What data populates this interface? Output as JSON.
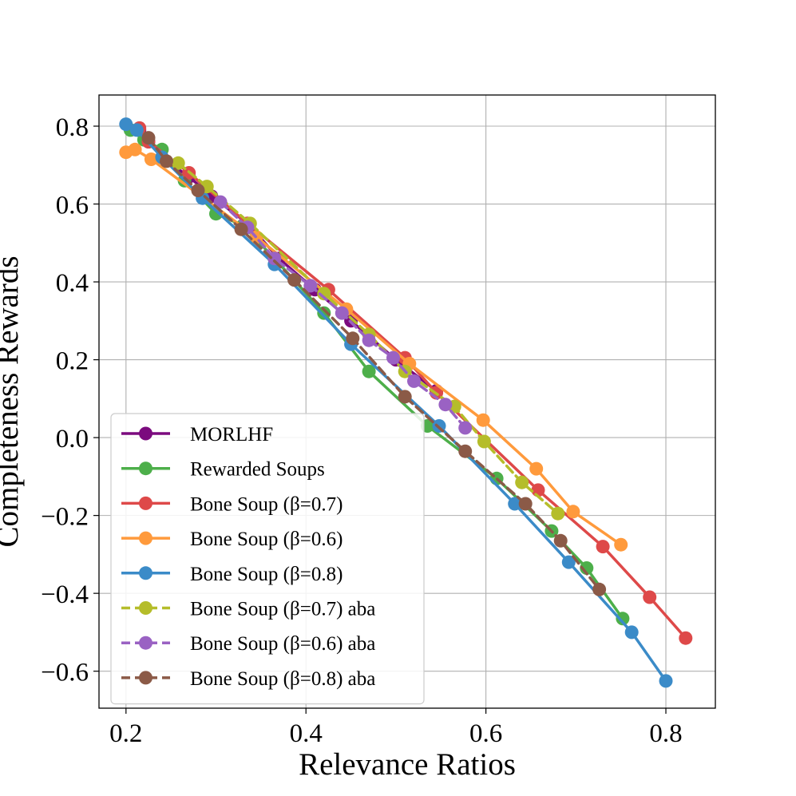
{
  "chart_data": {
    "type": "line",
    "title": "",
    "xlabel": "Relevance Ratios",
    "ylabel": "Completeness Rewards",
    "xlim": [
      0.17,
      0.855
    ],
    "ylim": [
      -0.695,
      0.88
    ],
    "xticks": [
      0.2,
      0.4,
      0.6,
      0.8
    ],
    "xtick_labels": [
      "0.2",
      "0.4",
      "0.6",
      "0.8"
    ],
    "yticks": [
      0.8,
      0.6,
      0.4,
      0.2,
      0.0,
      -0.2,
      -0.4,
      -0.6
    ],
    "ytick_labels": [
      "0.8",
      "0.6",
      "0.4",
      "0.2",
      "0.0",
      "−0.2",
      "−0.4",
      "−0.6"
    ],
    "grid": true,
    "legend_position": "lower-left",
    "series": [
      {
        "name": "MORLHF",
        "color": "#7b0a7e",
        "dashed": false,
        "x": [
          0.215,
          0.225,
          0.24,
          0.27,
          0.295,
          0.335,
          0.37,
          0.41,
          0.45,
          0.5,
          0.545
        ],
        "y": [
          0.79,
          0.76,
          0.72,
          0.67,
          0.62,
          0.55,
          0.46,
          0.38,
          0.3,
          0.2,
          0.12
        ]
      },
      {
        "name": "Rewarded Soups",
        "color": "#4daf4a",
        "dashed": false,
        "x": [
          0.205,
          0.22,
          0.24,
          0.265,
          0.3,
          0.33,
          0.365,
          0.42,
          0.47,
          0.535,
          0.612,
          0.673,
          0.712,
          0.752
        ],
        "y": [
          0.79,
          0.765,
          0.74,
          0.66,
          0.575,
          0.545,
          0.46,
          0.32,
          0.17,
          0.03,
          -0.105,
          -0.24,
          -0.335,
          -0.465
        ]
      },
      {
        "name": "Bone Soup (β=0.7)",
        "color": "#de4949",
        "dashed": false,
        "x": [
          0.215,
          0.225,
          0.27,
          0.335,
          0.425,
          0.51,
          0.545,
          0.658,
          0.73,
          0.782,
          0.822
        ],
        "y": [
          0.795,
          0.76,
          0.68,
          0.55,
          0.38,
          0.205,
          0.115,
          -0.135,
          -0.28,
          -0.41,
          -0.515
        ]
      },
      {
        "name": "Bone Soup (β=0.6)",
        "color": "#ff9a3c",
        "dashed": false,
        "x": [
          0.2,
          0.21,
          0.228,
          0.345,
          0.445,
          0.515,
          0.597,
          0.656,
          0.697,
          0.75
        ],
        "y": [
          0.733,
          0.74,
          0.715,
          0.515,
          0.33,
          0.19,
          0.045,
          -0.08,
          -0.19,
          -0.275
        ]
      },
      {
        "name": "Bone Soup (β=0.8)",
        "color": "#3b8bc8",
        "dashed": false,
        "x": [
          0.2,
          0.212,
          0.24,
          0.285,
          0.365,
          0.45,
          0.548,
          0.632,
          0.692,
          0.762,
          0.8
        ],
        "y": [
          0.805,
          0.79,
          0.72,
          0.615,
          0.445,
          0.24,
          0.03,
          -0.17,
          -0.32,
          -0.5,
          -0.625
        ]
      },
      {
        "name": "Bone Soup (β=0.7) aba",
        "color": "#b5bd2a",
        "dashed": true,
        "x": [
          0.258,
          0.29,
          0.338,
          0.42,
          0.47,
          0.51,
          0.565,
          0.598,
          0.64,
          0.68
        ],
        "y": [
          0.705,
          0.645,
          0.55,
          0.37,
          0.265,
          0.17,
          0.08,
          -0.01,
          -0.115,
          -0.195
        ]
      },
      {
        "name": "Bone Soup (β=0.6) aba",
        "color": "#9a62c3",
        "dashed": true,
        "x": [
          0.305,
          0.335,
          0.365,
          0.405,
          0.44,
          0.47,
          0.497,
          0.52,
          0.555,
          0.577
        ],
        "y": [
          0.605,
          0.54,
          0.46,
          0.39,
          0.32,
          0.25,
          0.205,
          0.145,
          0.085,
          0.025
        ]
      },
      {
        "name": "Bone Soup (β=0.8) aba",
        "color": "#8b5a47",
        "dashed": true,
        "x": [
          0.225,
          0.245,
          0.28,
          0.328,
          0.387,
          0.452,
          0.51,
          0.577,
          0.644,
          0.683,
          0.726
        ],
        "y": [
          0.77,
          0.71,
          0.635,
          0.535,
          0.405,
          0.255,
          0.105,
          -0.035,
          -0.17,
          -0.265,
          -0.39
        ]
      }
    ]
  }
}
